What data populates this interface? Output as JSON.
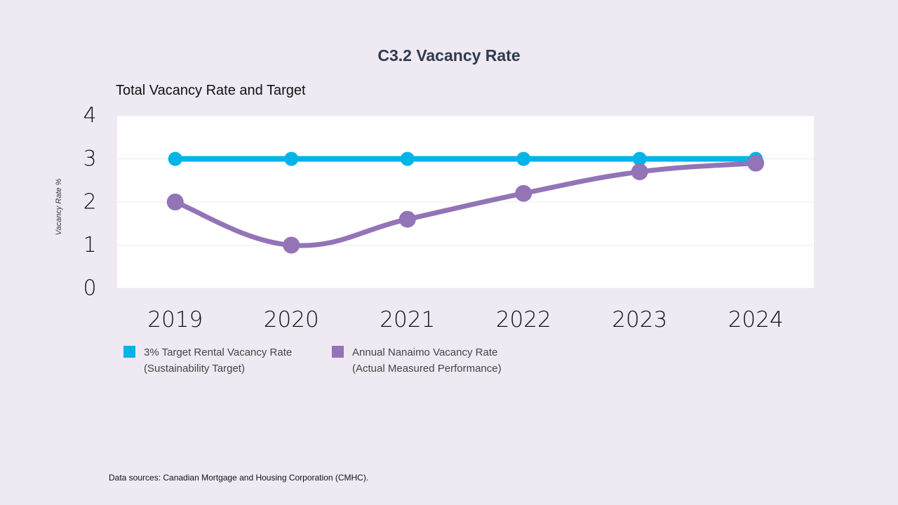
{
  "page": {
    "title": "C3.2 Vacancy Rate",
    "subtitle": "Total Vacancy Rate and Target",
    "source": "Data sources: Canadian Mortgage and Housing Corporation (CMHC)."
  },
  "legend": [
    {
      "line1": "3% Target Rental Vacancy Rate",
      "line2": "(Sustainability Target)",
      "color": "#00b4e8"
    },
    {
      "line1": "Annual Nanaimo Vacancy Rate",
      "line2": "(Actual Measured Performance)",
      "color": "#9374b7"
    }
  ],
  "chart_data": {
    "type": "line",
    "ylabel": "Vacancy Rate %",
    "xlabel": "",
    "categories": [
      "2019",
      "2020",
      "2021",
      "2022",
      "2023",
      "2024"
    ],
    "ylim": [
      0,
      4
    ],
    "yticks": [
      "0",
      "1",
      "2",
      "3",
      "4"
    ],
    "grid": true,
    "legend_position": "bottom-left",
    "series": [
      {
        "name": "3% Target Rental Vacancy Rate (Sustainability Target)",
        "values": [
          3,
          3,
          3,
          3,
          3,
          3
        ],
        "color": "#00b4e8",
        "smooth": false
      },
      {
        "name": "Annual Nanaimo Vacancy Rate (Actual Measured Performance)",
        "values": [
          2.0,
          1.0,
          1.6,
          2.2,
          2.7,
          2.9
        ],
        "color": "#9374b7",
        "smooth": true
      }
    ]
  }
}
